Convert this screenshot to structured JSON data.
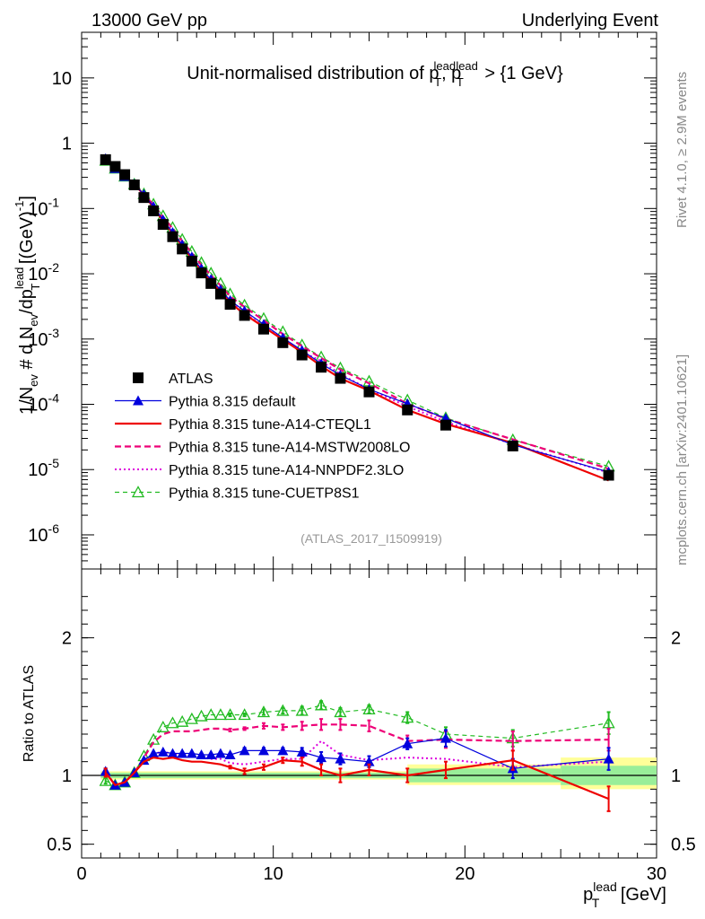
{
  "header": {
    "left": "13000 GeV pp",
    "right": "Underlying Event"
  },
  "side_text": {
    "right_top": "Rivet 4.1.0, ≥ 2.9M events",
    "right_bottom": "mcplots.cern.ch [arXiv:2401.10621]"
  },
  "colors": {
    "atlas": "#000000",
    "default": "#0000dd",
    "cteql1": "#ee0000",
    "mstw": "#ee0077",
    "nnpdf": "#dd00dd",
    "cuetp8s1": "#22bb22",
    "band_inner": "#99ee99",
    "band_outer": "#ffff99"
  },
  "chart_data": [
    {
      "id": "main",
      "type": "scatter",
      "title": "Unit-normalised distribution of p_T^lead, p_T^lead > {1 GeV}",
      "title_parts": {
        "prefix": "Unit-normalised distribution of p",
        "sub": "T",
        "sup": "lead",
        "sep": ", p",
        "suffix": " > {1 GeV}"
      },
      "ylabel": "1/N_ev # d N_ev/dp_T^lead [(GeV)^-1]",
      "ylabel_parts": {
        "p1": "1/N",
        "s1": "ev",
        "p2": " # d N",
        "s2": "ev",
        "p3": "/dp",
        "s3": "T",
        "sup3": "lead",
        "p4": " [(GeV)",
        "sup4": "-1",
        "p5": "]"
      },
      "yscale": "log",
      "ylim": [
        3e-07,
        50
      ],
      "xlim": [
        0,
        30
      ],
      "watermark": "(ATLAS_2017_I1509919)",
      "yticks": [
        {
          "v": 1e-06,
          "m": "10",
          "e": "-6"
        },
        {
          "v": 1e-05,
          "m": "10",
          "e": "-5"
        },
        {
          "v": 0.0001,
          "m": "10",
          "e": "-4"
        },
        {
          "v": 0.001,
          "m": "10",
          "e": "-3"
        },
        {
          "v": 0.01,
          "m": "10",
          "e": "-2"
        },
        {
          "v": 0.1,
          "m": "10",
          "e": "-1"
        },
        {
          "v": 1,
          "m": "1",
          "e": ""
        },
        {
          "v": 10,
          "m": "10",
          "e": ""
        }
      ],
      "x": [
        1.25,
        1.75,
        2.25,
        2.75,
        3.25,
        3.75,
        4.25,
        4.75,
        5.25,
        5.75,
        6.25,
        6.75,
        7.25,
        7.75,
        8.5,
        9.5,
        10.5,
        11.5,
        12.5,
        13.5,
        15,
        17,
        19,
        22.5,
        27.5
      ],
      "series": [
        {
          "name": "ATLAS",
          "key": "atlas",
          "style": "data",
          "values": [
            0.56,
            0.44,
            0.33,
            0.23,
            0.147,
            0.092,
            0.057,
            0.037,
            0.024,
            0.0156,
            0.0103,
            0.0071,
            0.0049,
            0.0034,
            0.0023,
            0.00142,
            0.00088,
            0.00057,
            0.00037,
            0.00025,
            0.000155,
            8.2e-05,
            4.8e-05,
            2.3e-05,
            8.2e-06
          ]
        },
        {
          "name": "Pythia 8.315 default",
          "key": "default",
          "style": "line-tri",
          "values": [
            0.58,
            0.41,
            0.31,
            0.236,
            0.164,
            0.107,
            0.067,
            0.043,
            0.0278,
            0.0181,
            0.0119,
            0.0082,
            0.0057,
            0.0039,
            0.0027,
            0.00168,
            0.00104,
            0.00067,
            0.00042,
            0.00028,
            0.00017,
            0.000102,
            6.1e-05,
            2.4e-05,
            9.2e-06
          ]
        },
        {
          "name": "Pythia 8.315 tune-A14-CTEQL1",
          "key": "cteql1",
          "style": "solid",
          "values": [
            0.57,
            0.41,
            0.31,
            0.236,
            0.162,
            0.104,
            0.064,
            0.042,
            0.0266,
            0.0171,
            0.0113,
            0.0077,
            0.0053,
            0.0036,
            0.0024,
            0.00153,
            0.00098,
            0.00063,
            0.000385,
            0.00025,
            0.000162,
            8.2e-05,
            5e-05,
            2.55e-05,
            6.8e-06
          ]
        },
        {
          "name": "Pythia 8.315 tune-A14-MSTW2008LO",
          "key": "mstw",
          "style": "dash",
          "values": [
            0.57,
            0.41,
            0.31,
            0.236,
            0.166,
            0.114,
            0.074,
            0.049,
            0.0316,
            0.0206,
            0.0136,
            0.0095,
            0.0066,
            0.0045,
            0.0031,
            0.00193,
            0.00119,
            0.00078,
            0.00051,
            0.00034,
            0.00021,
            0.000102,
            6e-05,
            2.9e-05,
            1.03e-05
          ]
        },
        {
          "name": "Pythia 8.315 tune-A14-NNPDF2.3LO",
          "key": "nnpdf",
          "style": "dot",
          "values": [
            0.58,
            0.41,
            0.31,
            0.236,
            0.164,
            0.107,
            0.067,
            0.043,
            0.0276,
            0.0178,
            0.0117,
            0.008,
            0.0055,
            0.0037,
            0.0025,
            0.00156,
            0.00099,
            0.00064,
            0.00046,
            0.00029,
            0.00017,
            9.3e-05,
            5.4e-05,
            2.45e-05,
            9e-06
          ]
        },
        {
          "name": "Pythia 8.315 tune-CUETP8S1",
          "key": "cuetp8s1",
          "style": "dash-opentri",
          "values": [
            0.54,
            0.41,
            0.31,
            0.236,
            0.167,
            0.116,
            0.077,
            0.051,
            0.0335,
            0.0219,
            0.0148,
            0.0102,
            0.0071,
            0.0049,
            0.0033,
            0.00206,
            0.00129,
            0.00081,
            0.00053,
            0.00036,
            0.000225,
            0.000116,
            6.2e-05,
            2.85e-05,
            1.12e-05
          ]
        }
      ]
    },
    {
      "id": "ratio",
      "type": "line",
      "ylabel": "Ratio to ATLAS",
      "xlabel": "p_T^lead [GeV]",
      "xlabel_parts": {
        "p": "p",
        "sub": "T",
        "sup": "lead",
        "unit": " [GeV]"
      },
      "ylim": [
        0.4,
        2.5
      ],
      "xlim": [
        0,
        30
      ],
      "yticks": [
        {
          "v": 0.5,
          "label": "0.5"
        },
        {
          "v": 1,
          "label": "1"
        },
        {
          "v": 2,
          "label": "2"
        }
      ],
      "xticks": [
        {
          "v": 0,
          "label": "0"
        },
        {
          "v": 10,
          "label": "10"
        },
        {
          "v": 20,
          "label": "20"
        },
        {
          "v": 30,
          "label": "30"
        }
      ],
      "bands": [
        {
          "x0": 1,
          "x1": 17,
          "inner": [
            0.98,
            1.02
          ],
          "outer": [
            0.97,
            1.03
          ]
        },
        {
          "x0": 17,
          "x1": 25,
          "inner": [
            0.95,
            1.05
          ],
          "outer": [
            0.93,
            1.08
          ]
        },
        {
          "x0": 25,
          "x1": 30,
          "inner": [
            0.93,
            1.07
          ],
          "outer": [
            0.9,
            1.13
          ]
        }
      ],
      "x": [
        1.25,
        1.75,
        2.25,
        2.75,
        3.25,
        3.75,
        4.25,
        4.75,
        5.25,
        5.75,
        6.25,
        6.75,
        7.25,
        7.75,
        8.5,
        9.5,
        10.5,
        11.5,
        12.5,
        13.5,
        15,
        17,
        19,
        22.5,
        27.5
      ],
      "series": [
        {
          "key": "default",
          "style": "line-tri",
          "values": [
            1.03,
            0.93,
            0.95,
            1.02,
            1.11,
            1.16,
            1.17,
            1.16,
            1.16,
            1.16,
            1.15,
            1.15,
            1.16,
            1.15,
            1.18,
            1.18,
            1.18,
            1.17,
            1.13,
            1.12,
            1.1,
            1.23,
            1.27,
            1.05,
            1.12
          ]
        },
        {
          "key": "cteql1",
          "style": "solid",
          "values": [
            1.02,
            0.93,
            0.95,
            1.02,
            1.1,
            1.13,
            1.12,
            1.13,
            1.11,
            1.1,
            1.1,
            1.09,
            1.08,
            1.06,
            1.03,
            1.06,
            1.11,
            1.1,
            1.04,
            1.0,
            1.04,
            1.0,
            1.04,
            1.11,
            0.83
          ]
        },
        {
          "key": "mstw",
          "style": "dash",
          "values": [
            1.02,
            0.93,
            0.95,
            1.02,
            1.13,
            1.24,
            1.3,
            1.32,
            1.32,
            1.32,
            1.33,
            1.34,
            1.34,
            1.33,
            1.34,
            1.36,
            1.35,
            1.36,
            1.37,
            1.37,
            1.36,
            1.25,
            1.26,
            1.25,
            1.26
          ]
        },
        {
          "key": "nnpdf",
          "style": "dot",
          "values": [
            1.03,
            0.93,
            0.95,
            1.02,
            1.11,
            1.16,
            1.17,
            1.16,
            1.15,
            1.14,
            1.13,
            1.12,
            1.12,
            1.09,
            1.08,
            1.1,
            1.12,
            1.12,
            1.25,
            1.15,
            1.11,
            1.13,
            1.12,
            1.06,
            1.1
          ]
        },
        {
          "key": "cuetp8s1",
          "style": "dash-opentri",
          "values": [
            0.96,
            0.93,
            0.95,
            1.02,
            1.14,
            1.26,
            1.35,
            1.38,
            1.39,
            1.41,
            1.43,
            1.44,
            1.44,
            1.44,
            1.44,
            1.46,
            1.47,
            1.47,
            1.51,
            1.46,
            1.48,
            1.42,
            1.3,
            1.27,
            1.38
          ]
        }
      ],
      "errors": {
        "cteql1": [
          0.03,
          0,
          0,
          0,
          0,
          0,
          0,
          0,
          0,
          0,
          0,
          0,
          0,
          0.01,
          0.02,
          0.02,
          0.02,
          0.03,
          0.04,
          0.05,
          0.04,
          0.05,
          0.06,
          0.07,
          0.09
        ],
        "default": [
          0.02,
          0,
          0,
          0,
          0,
          0,
          0,
          0,
          0,
          0,
          0,
          0,
          0,
          0.01,
          0.02,
          0.02,
          0.02,
          0.03,
          0.04,
          0.04,
          0.04,
          0.04,
          0.06,
          0.07,
          0.08
        ],
        "mstw": [
          0.02,
          0,
          0,
          0,
          0,
          0,
          0,
          0,
          0,
          0,
          0,
          0,
          0,
          0.01,
          0.01,
          0.02,
          0.02,
          0.03,
          0.04,
          0.04,
          0.04,
          0.04,
          0.06,
          0.07,
          0.08
        ],
        "cuetp8s1": [
          0.02,
          0,
          0,
          0,
          0,
          0,
          0,
          0,
          0,
          0,
          0,
          0,
          0,
          0.01,
          0.01,
          0.02,
          0.02,
          0.03,
          0.03,
          0.03,
          0.03,
          0.04,
          0.05,
          0.06,
          0.08
        ]
      }
    }
  ]
}
